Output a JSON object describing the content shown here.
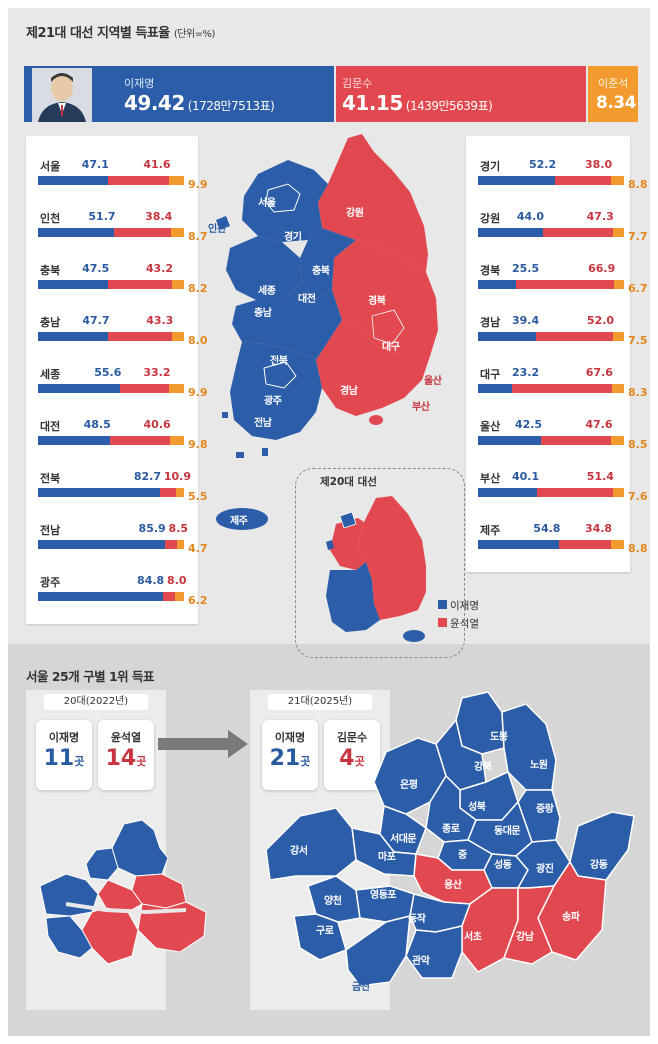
{
  "title": "제21대 대선 지역별 득표율",
  "title_unit": "(단위=%)",
  "colors": {
    "blue": "#2b5da8",
    "red": "#e2484f",
    "orange": "#f29a2e"
  },
  "national": {
    "lee_name": "이재명",
    "lee_pct": "49.42",
    "lee_votes": "(1728만7513표)",
    "kim_name": "김문수",
    "kim_pct": "41.15",
    "kim_votes": "(1439만5639표)",
    "lr_name": "이준석",
    "lr_pct": "8.34"
  },
  "chart_data": {
    "type": "bar",
    "title": "제21대 대선 지역별 득표율",
    "unit": "%",
    "series_names": [
      "이재명",
      "김문수",
      "이준석"
    ],
    "left_regions": [
      {
        "name": "서울",
        "v": [
          47.1,
          41.6,
          9.9
        ]
      },
      {
        "name": "인천",
        "v": [
          51.7,
          38.4,
          8.7
        ]
      },
      {
        "name": "충북",
        "v": [
          47.5,
          43.2,
          8.2
        ]
      },
      {
        "name": "충남",
        "v": [
          47.7,
          43.3,
          8.0
        ]
      },
      {
        "name": "세종",
        "v": [
          55.6,
          33.2,
          9.9
        ]
      },
      {
        "name": "대전",
        "v": [
          48.5,
          40.6,
          9.8
        ]
      },
      {
        "name": "전북",
        "v": [
          82.7,
          10.9,
          5.5
        ]
      },
      {
        "name": "전남",
        "v": [
          85.9,
          8.5,
          4.7
        ]
      },
      {
        "name": "광주",
        "v": [
          84.8,
          8.0,
          6.2
        ]
      }
    ],
    "right_regions": [
      {
        "name": "경기",
        "v": [
          52.2,
          38.0,
          8.8
        ]
      },
      {
        "name": "강원",
        "v": [
          44.0,
          47.3,
          7.7
        ]
      },
      {
        "name": "경북",
        "v": [
          25.5,
          66.9,
          6.7
        ]
      },
      {
        "name": "경남",
        "v": [
          39.4,
          52.0,
          7.5
        ]
      },
      {
        "name": "대구",
        "v": [
          23.2,
          67.6,
          8.3
        ]
      },
      {
        "name": "울산",
        "v": [
          42.5,
          47.6,
          8.5
        ]
      },
      {
        "name": "부산",
        "v": [
          40.1,
          51.4,
          7.6
        ]
      },
      {
        "name": "제주",
        "v": [
          54.8,
          34.8,
          8.8
        ]
      }
    ]
  },
  "map_labels": {
    "seoul": "서울",
    "incheon": "인천",
    "gyeonggi": "경기",
    "gangwon": "강원",
    "chungbuk": "충북",
    "sejong": "세종",
    "daejeon": "대전",
    "chungnam": "충남",
    "gyeongbuk": "경북",
    "daegu": "대구",
    "jeonbuk": "전북",
    "gyeongnam": "경남",
    "ulsan": "울산",
    "busan": "부산",
    "gwangju": "광주",
    "jeonnam": "전남",
    "jeju": "제주"
  },
  "inset": {
    "title": "제20대 대선",
    "legend_lee": "이재명",
    "legend_yoon": "윤석열"
  },
  "seoul_section": {
    "title": "서울 25개 구별 1위 득표",
    "arrow_icon": "arrow-right-icon",
    "y2022": {
      "tab": "20대(2022년)",
      "a_name": "이재명",
      "a_num": "11",
      "b_name": "윤석열",
      "b_num": "14",
      "unit": "곳"
    },
    "y2025": {
      "tab": "21대(2025년)",
      "a_name": "이재명",
      "a_num": "21",
      "b_name": "김문수",
      "b_num": "4",
      "unit": "곳"
    },
    "districts": {
      "dobong": "도봉",
      "nowon": "노원",
      "gangbuk": "강북",
      "eunpyeong": "은평",
      "seongbuk": "성북",
      "jungnang": "중랑",
      "jongno": "종로",
      "dongdaemun": "동대문",
      "seodaemun": "서대문",
      "mapo": "마포",
      "jung": "중",
      "seongdong": "성동",
      "gwangjin": "광진",
      "gangdong": "강동",
      "gangseo": "강서",
      "yongsan": "용산",
      "yangcheon": "양천",
      "yeongdeungpo": "영등포",
      "songpa": "송파",
      "dongjak": "동작",
      "guro": "구로",
      "seocho": "서초",
      "gangnam": "강남",
      "gwanak": "관악",
      "geumcheon": "금천"
    }
  }
}
